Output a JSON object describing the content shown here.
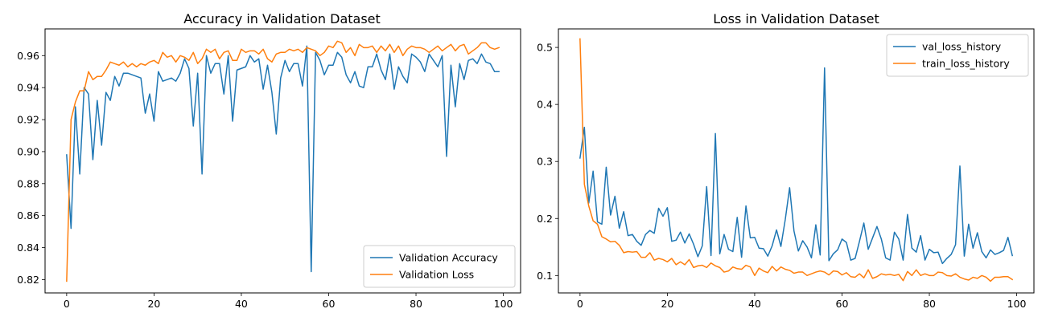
{
  "chart_data": [
    {
      "type": "line",
      "title": "Accuracy in Validation Dataset",
      "xlabel": "",
      "ylabel": "",
      "xlim": [
        -4.95,
        103.95
      ],
      "ylim": [
        0.8117,
        0.9767
      ],
      "xticks": [
        0,
        20,
        40,
        60,
        80,
        100
      ],
      "yticks": [
        0.82,
        0.84,
        0.86,
        0.88,
        0.9,
        0.92,
        0.94,
        0.96
      ],
      "ytick_labels": [
        "0.82",
        "0.84",
        "0.86",
        "0.88",
        "0.90",
        "0.92",
        "0.94",
        "0.96"
      ],
      "grid": false,
      "legend_position": "lower right",
      "series": [
        {
          "name": "Validation Accuracy",
          "color": "#1f77b4",
          "x": [
            0,
            1,
            2,
            3,
            4,
            5,
            6,
            7,
            8,
            9,
            10,
            11,
            12,
            13,
            14,
            15,
            16,
            17,
            18,
            19,
            20,
            21,
            22,
            23,
            24,
            25,
            26,
            27,
            28,
            29,
            30,
            31,
            32,
            33,
            34,
            35,
            36,
            37,
            38,
            39,
            40,
            41,
            42,
            43,
            44,
            45,
            46,
            47,
            48,
            49,
            50,
            51,
            52,
            53,
            54,
            55,
            56,
            57,
            58,
            59,
            60,
            61,
            62,
            63,
            64,
            65,
            66,
            67,
            68,
            69,
            70,
            71,
            72,
            73,
            74,
            75,
            76,
            77,
            78,
            79,
            80,
            81,
            82,
            83,
            84,
            85,
            86,
            87,
            88,
            89,
            90,
            91,
            92,
            93,
            94,
            95,
            96,
            97,
            98,
            99
          ],
          "values": [
            0.898,
            0.852,
            0.928,
            0.886,
            0.94,
            0.936,
            0.895,
            0.932,
            0.904,
            0.937,
            0.932,
            0.947,
            0.941,
            0.949,
            0.949,
            0.948,
            0.947,
            0.946,
            0.924,
            0.936,
            0.919,
            0.95,
            0.944,
            0.945,
            0.946,
            0.944,
            0.949,
            0.958,
            0.952,
            0.916,
            0.949,
            0.886,
            0.96,
            0.949,
            0.955,
            0.955,
            0.936,
            0.96,
            0.919,
            0.951,
            0.952,
            0.953,
            0.96,
            0.956,
            0.958,
            0.939,
            0.954,
            0.937,
            0.911,
            0.946,
            0.957,
            0.95,
            0.955,
            0.955,
            0.941,
            0.966,
            0.825,
            0.962,
            0.957,
            0.948,
            0.954,
            0.954,
            0.962,
            0.959,
            0.948,
            0.943,
            0.95,
            0.941,
            0.94,
            0.953,
            0.953,
            0.961,
            0.951,
            0.945,
            0.961,
            0.939,
            0.953,
            0.947,
            0.943,
            0.961,
            0.959,
            0.956,
            0.95,
            0.961,
            0.957,
            0.953,
            0.96,
            0.897,
            0.954,
            0.928,
            0.955,
            0.945,
            0.957,
            0.958,
            0.955,
            0.961,
            0.956,
            0.955,
            0.95,
            0.95
          ]
        },
        {
          "name": "Validation Loss",
          "color": "#ff7f0e",
          "x": [
            0,
            1,
            2,
            3,
            4,
            5,
            6,
            7,
            8,
            9,
            10,
            11,
            12,
            13,
            14,
            15,
            16,
            17,
            18,
            19,
            20,
            21,
            22,
            23,
            24,
            25,
            26,
            27,
            28,
            29,
            30,
            31,
            32,
            33,
            34,
            35,
            36,
            37,
            38,
            39,
            40,
            41,
            42,
            43,
            44,
            45,
            46,
            47,
            48,
            49,
            50,
            51,
            52,
            53,
            54,
            55,
            56,
            57,
            58,
            59,
            60,
            61,
            62,
            63,
            64,
            65,
            66,
            67,
            68,
            69,
            70,
            71,
            72,
            73,
            74,
            75,
            76,
            77,
            78,
            79,
            80,
            81,
            82,
            83,
            84,
            85,
            86,
            87,
            88,
            89,
            90,
            91,
            92,
            93,
            94,
            95,
            96,
            97,
            98,
            99
          ],
          "values": [
            0.819,
            0.92,
            0.931,
            0.938,
            0.938,
            0.95,
            0.945,
            0.947,
            0.947,
            0.951,
            0.956,
            0.955,
            0.954,
            0.956,
            0.953,
            0.955,
            0.953,
            0.955,
            0.954,
            0.956,
            0.957,
            0.955,
            0.962,
            0.959,
            0.96,
            0.956,
            0.96,
            0.959,
            0.957,
            0.962,
            0.955,
            0.958,
            0.964,
            0.962,
            0.964,
            0.958,
            0.962,
            0.963,
            0.957,
            0.957,
            0.964,
            0.962,
            0.963,
            0.963,
            0.961,
            0.964,
            0.958,
            0.956,
            0.961,
            0.962,
            0.962,
            0.964,
            0.963,
            0.964,
            0.962,
            0.965,
            0.964,
            0.963,
            0.96,
            0.962,
            0.966,
            0.965,
            0.969,
            0.968,
            0.962,
            0.965,
            0.96,
            0.967,
            0.965,
            0.965,
            0.966,
            0.962,
            0.966,
            0.963,
            0.967,
            0.962,
            0.966,
            0.96,
            0.964,
            0.966,
            0.965,
            0.965,
            0.964,
            0.962,
            0.964,
            0.966,
            0.963,
            0.965,
            0.967,
            0.963,
            0.966,
            0.967,
            0.961,
            0.963,
            0.965,
            0.968,
            0.968,
            0.965,
            0.964,
            0.965
          ]
        }
      ]
    },
    {
      "type": "line",
      "title": "Loss in Validation Dataset",
      "xlabel": "",
      "ylabel": "",
      "xlim": [
        -4.95,
        103.95
      ],
      "ylim": [
        0.0695,
        0.5325
      ],
      "xticks": [
        0,
        20,
        40,
        60,
        80,
        100
      ],
      "yticks": [
        0.1,
        0.2,
        0.3,
        0.4,
        0.5
      ],
      "ytick_labels": [
        "0.1",
        "0.2",
        "0.3",
        "0.4",
        "0.5"
      ],
      "grid": false,
      "legend_position": "upper right",
      "series": [
        {
          "name": "val_loss_history",
          "color": "#1f77b4",
          "x": [
            0,
            1,
            2,
            3,
            4,
            5,
            6,
            7,
            8,
            9,
            10,
            11,
            12,
            13,
            14,
            15,
            16,
            17,
            18,
            19,
            20,
            21,
            22,
            23,
            24,
            25,
            26,
            27,
            28,
            29,
            30,
            31,
            32,
            33,
            34,
            35,
            36,
            37,
            38,
            39,
            40,
            41,
            42,
            43,
            44,
            45,
            46,
            47,
            48,
            49,
            50,
            51,
            52,
            53,
            54,
            55,
            56,
            57,
            58,
            59,
            60,
            61,
            62,
            63,
            64,
            65,
            66,
            67,
            68,
            69,
            70,
            71,
            72,
            73,
            74,
            75,
            76,
            77,
            78,
            79,
            80,
            81,
            82,
            83,
            84,
            85,
            86,
            87,
            88,
            89,
            90,
            91,
            92,
            93,
            94,
            95,
            96,
            97,
            98,
            99
          ],
          "values": [
            0.306,
            0.36,
            0.227,
            0.283,
            0.194,
            0.19,
            0.29,
            0.206,
            0.239,
            0.183,
            0.212,
            0.17,
            0.172,
            0.16,
            0.153,
            0.172,
            0.179,
            0.174,
            0.218,
            0.204,
            0.219,
            0.16,
            0.162,
            0.176,
            0.157,
            0.173,
            0.155,
            0.133,
            0.152,
            0.256,
            0.135,
            0.349,
            0.138,
            0.172,
            0.146,
            0.142,
            0.202,
            0.132,
            0.222,
            0.166,
            0.167,
            0.148,
            0.147,
            0.134,
            0.152,
            0.18,
            0.151,
            0.198,
            0.254,
            0.178,
            0.143,
            0.161,
            0.15,
            0.131,
            0.189,
            0.136,
            0.464,
            0.126,
            0.138,
            0.145,
            0.164,
            0.158,
            0.127,
            0.13,
            0.16,
            0.192,
            0.146,
            0.166,
            0.186,
            0.164,
            0.131,
            0.127,
            0.176,
            0.164,
            0.127,
            0.207,
            0.148,
            0.141,
            0.17,
            0.127,
            0.146,
            0.14,
            0.141,
            0.121,
            0.13,
            0.137,
            0.154,
            0.292,
            0.134,
            0.19,
            0.148,
            0.175,
            0.142,
            0.131,
            0.145,
            0.137,
            0.14,
            0.144,
            0.167,
            0.135
          ]
        },
        {
          "name": "train_loss_history",
          "color": "#ff7f0e",
          "x": [
            0,
            1,
            2,
            3,
            4,
            5,
            6,
            7,
            8,
            9,
            10,
            11,
            12,
            13,
            14,
            15,
            16,
            17,
            18,
            19,
            20,
            21,
            22,
            23,
            24,
            25,
            26,
            27,
            28,
            29,
            30,
            31,
            32,
            33,
            34,
            35,
            36,
            37,
            38,
            39,
            40,
            41,
            42,
            43,
            44,
            45,
            46,
            47,
            48,
            49,
            50,
            51,
            52,
            53,
            54,
            55,
            56,
            57,
            58,
            59,
            60,
            61,
            62,
            63,
            64,
            65,
            66,
            67,
            68,
            69,
            70,
            71,
            72,
            73,
            74,
            75,
            76,
            77,
            78,
            79,
            80,
            81,
            82,
            83,
            84,
            85,
            86,
            87,
            88,
            89,
            90,
            91,
            92,
            93,
            94,
            95,
            96,
            97,
            98,
            99
          ],
          "values": [
            0.515,
            0.26,
            0.222,
            0.196,
            0.19,
            0.168,
            0.164,
            0.159,
            0.16,
            0.153,
            0.14,
            0.142,
            0.141,
            0.142,
            0.132,
            0.132,
            0.14,
            0.127,
            0.13,
            0.128,
            0.124,
            0.13,
            0.119,
            0.124,
            0.119,
            0.128,
            0.114,
            0.117,
            0.118,
            0.114,
            0.122,
            0.117,
            0.114,
            0.106,
            0.108,
            0.115,
            0.112,
            0.111,
            0.118,
            0.115,
            0.1,
            0.113,
            0.108,
            0.105,
            0.116,
            0.108,
            0.115,
            0.111,
            0.109,
            0.104,
            0.106,
            0.106,
            0.1,
            0.103,
            0.106,
            0.108,
            0.106,
            0.101,
            0.108,
            0.107,
            0.101,
            0.105,
            0.098,
            0.097,
            0.103,
            0.096,
            0.11,
            0.095,
            0.098,
            0.103,
            0.101,
            0.102,
            0.1,
            0.102,
            0.091,
            0.107,
            0.1,
            0.11,
            0.1,
            0.103,
            0.1,
            0.1,
            0.106,
            0.105,
            0.1,
            0.099,
            0.103,
            0.097,
            0.094,
            0.092,
            0.097,
            0.095,
            0.1,
            0.097,
            0.09,
            0.097,
            0.097,
            0.098,
            0.098,
            0.093
          ]
        }
      ]
    }
  ]
}
